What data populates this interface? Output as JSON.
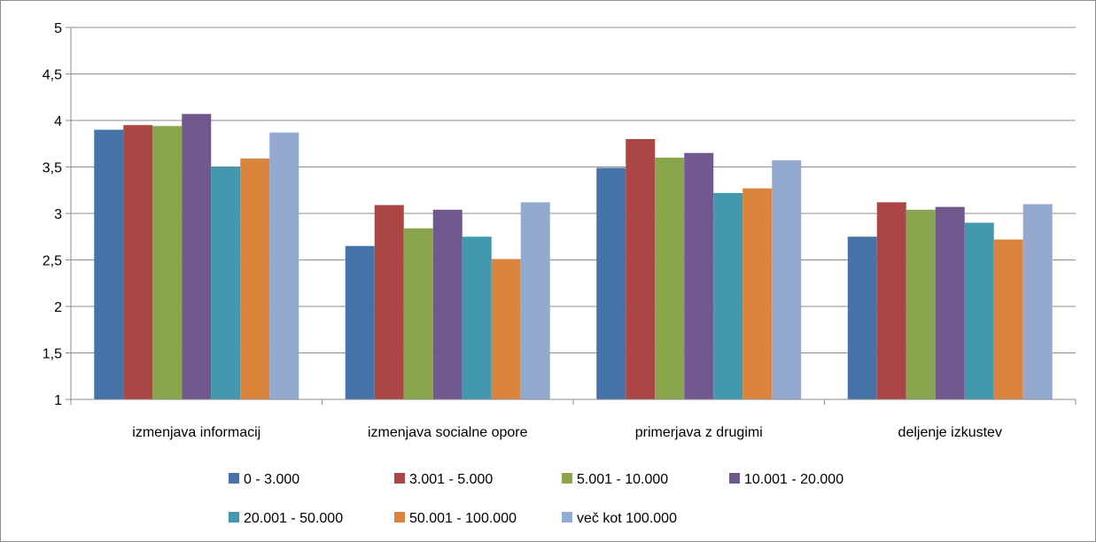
{
  "chart_data": {
    "type": "bar",
    "categories": [
      "izmenjava informacij",
      "izmenjava socialne opore",
      "primerjava z drugimi",
      "deljenje izkustev"
    ],
    "series": [
      {
        "name": "0 - 3.000",
        "color": "#4572A7",
        "values": [
          3.9,
          2.65,
          3.49,
          2.75
        ]
      },
      {
        "name": "3.001 - 5.000",
        "color": "#AA4643",
        "values": [
          3.95,
          3.09,
          3.8,
          3.12
        ]
      },
      {
        "name": "5.001 - 10.000",
        "color": "#89A54E",
        "values": [
          3.94,
          2.84,
          3.6,
          3.04
        ]
      },
      {
        "name": "10.001 - 20.000",
        "color": "#71588F",
        "values": [
          4.07,
          3.04,
          3.65,
          3.07
        ]
      },
      {
        "name": "20.001 - 50.000",
        "color": "#4198AF",
        "values": [
          3.5,
          2.75,
          3.22,
          2.9
        ]
      },
      {
        "name": "50.001 - 100.000",
        "color": "#DB843D",
        "values": [
          3.59,
          2.51,
          3.27,
          2.72
        ]
      },
      {
        "name": "več kot 100.000",
        "color": "#93A9CF",
        "values": [
          3.87,
          3.12,
          3.57,
          3.1
        ]
      }
    ],
    "ylim": [
      1,
      5
    ],
    "yticks": [
      "1",
      "1,5",
      "2",
      "2,5",
      "3",
      "3,5",
      "4",
      "4,5",
      "5"
    ],
    "grid": true,
    "legend_position": "bottom"
  }
}
